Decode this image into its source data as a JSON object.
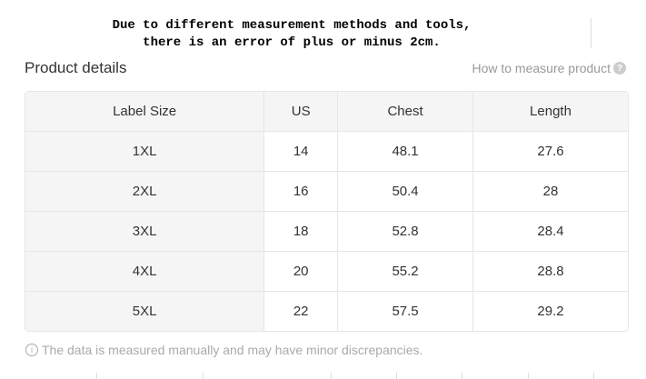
{
  "notice": {
    "line1": "Due to different measurement methods and tools,",
    "line2": "there is an error of plus or minus 2cm."
  },
  "header": {
    "title": "Product details",
    "how_to": "How to measure product"
  },
  "table": {
    "columns": [
      "Label Size",
      "US",
      "Chest",
      "Length"
    ],
    "rows": [
      [
        "1XL",
        "14",
        "48.1",
        "27.6"
      ],
      [
        "2XL",
        "16",
        "50.4",
        "28"
      ],
      [
        "3XL",
        "18",
        "52.8",
        "28.4"
      ],
      [
        "4XL",
        "20",
        "55.2",
        "28.8"
      ],
      [
        "5XL",
        "22",
        "57.5",
        "29.2"
      ]
    ]
  },
  "footer": {
    "note": "The data is measured manually and may have minor discrepancies."
  }
}
